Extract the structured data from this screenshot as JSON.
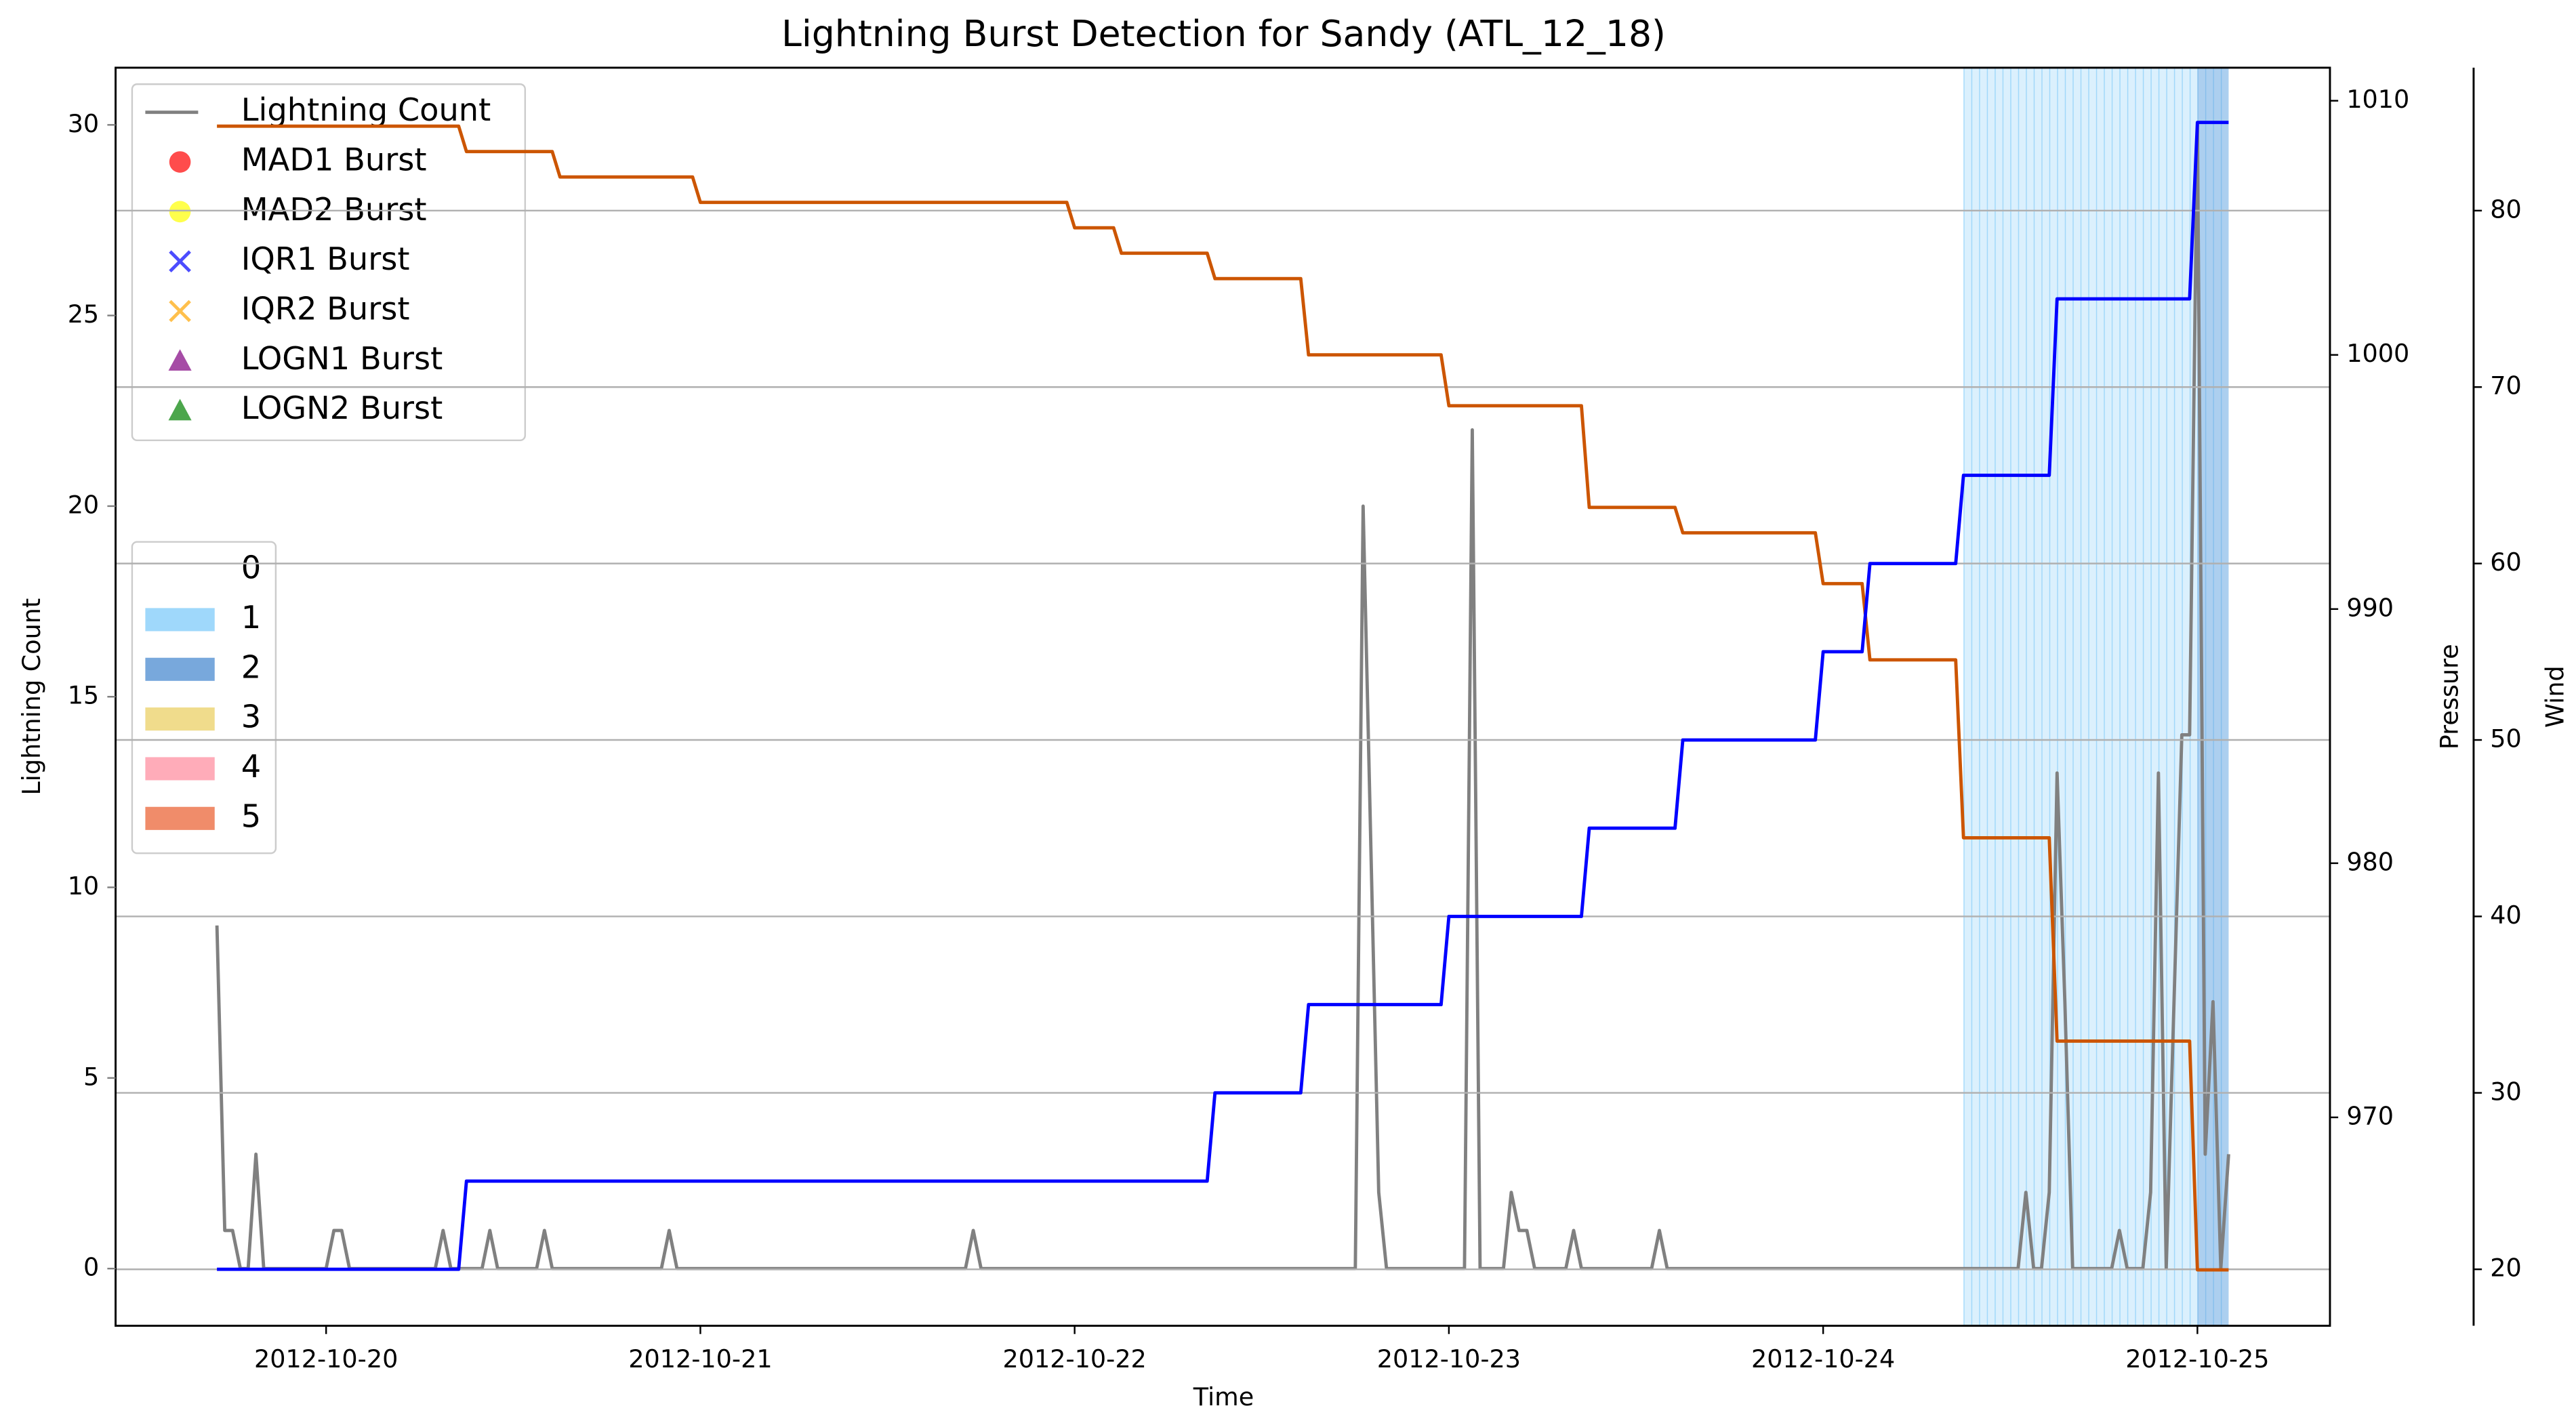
{
  "chart_data": {
    "type": "line",
    "title": "Lightning Burst Detection for Sandy (ATL_12_18)",
    "xlabel": "Time",
    "xlim": [
      "2012-10-19 10:30",
      "2012-10-25 08:30"
    ],
    "xticks": [
      "2012-10-20",
      "2012-10-21",
      "2012-10-22",
      "2012-10-23",
      "2012-10-24",
      "2012-10-25"
    ],
    "ylabel": "Lightning Count",
    "ycolor": "#808080",
    "ylim": [
      -1.5,
      31.5
    ],
    "yticks": [
      0,
      5,
      10,
      15,
      20,
      25,
      30
    ],
    "y2label": "Pressure",
    "y2color": "#cc5500",
    "y2lim": [
      961.8,
      1011.3
    ],
    "y2ticks": [
      970,
      980,
      990,
      1000,
      1010
    ],
    "y3label": "Wind",
    "y3color": "#00008b",
    "y3lim": [
      16.8,
      88.1
    ],
    "y3ticks": [
      20,
      30,
      40,
      50,
      60,
      70,
      80
    ],
    "grid": "y3",
    "legend_loc": "upper left",
    "series": [
      {
        "name": "Lightning Count",
        "color": "#808080",
        "axis": "y",
        "x": [
          "2012-10-19 17:00",
          "2012-10-19 17:30",
          "2012-10-19 18:00",
          "2012-10-19 18:30",
          "2012-10-19 19:00",
          "2012-10-19 19:30",
          "2012-10-19 20:00",
          "2012-10-20 00:00",
          "2012-10-20 00:30",
          "2012-10-20 01:00",
          "2012-10-20 01:30",
          "2012-10-20 07:00",
          "2012-10-20 07:30",
          "2012-10-20 08:00",
          "2012-10-20 10:00",
          "2012-10-20 10:30",
          "2012-10-20 11:00",
          "2012-10-20 13:30",
          "2012-10-20 14:00",
          "2012-10-20 14:30",
          "2012-10-20 21:30",
          "2012-10-20 22:00",
          "2012-10-20 22:30",
          "2012-10-21 17:00",
          "2012-10-21 17:30",
          "2012-10-21 18:00",
          "2012-10-22 18:00",
          "2012-10-22 18:30",
          "2012-10-22 19:30",
          "2012-10-22 20:00",
          "2012-10-23 01:00",
          "2012-10-23 01:30",
          "2012-10-23 02:00",
          "2012-10-23 03:30",
          "2012-10-23 04:00",
          "2012-10-23 04:30",
          "2012-10-23 05:00",
          "2012-10-23 05:30",
          "2012-10-23 07:30",
          "2012-10-23 08:00",
          "2012-10-23 08:30",
          "2012-10-23 13:00",
          "2012-10-23 13:30",
          "2012-10-23 14:00",
          "2012-10-24 12:30",
          "2012-10-24 13:00",
          "2012-10-24 13:30",
          "2012-10-24 14:00",
          "2012-10-24 14:30",
          "2012-10-24 15:00",
          "2012-10-24 15:30",
          "2012-10-24 16:00",
          "2012-10-24 18:30",
          "2012-10-24 19:00",
          "2012-10-24 19:30",
          "2012-10-24 20:30",
          "2012-10-24 21:00",
          "2012-10-24 21:30",
          "2012-10-24 22:00",
          "2012-10-24 23:00",
          "2012-10-24 23:30",
          "2012-10-25 00:00",
          "2012-10-25 00:30",
          "2012-10-25 01:00",
          "2012-10-25 01:30",
          "2012-10-25 02:00"
        ],
        "values": [
          9,
          1,
          1,
          0,
          0,
          3,
          0,
          0,
          1,
          1,
          0,
          0,
          1,
          0,
          0,
          1,
          0,
          0,
          1,
          0,
          0,
          1,
          0,
          0,
          1,
          0,
          0,
          20,
          2,
          0,
          0,
          22,
          0,
          0,
          2,
          1,
          1,
          0,
          0,
          1,
          0,
          0,
          1,
          0,
          0,
          2,
          0,
          0,
          2,
          13,
          7,
          0,
          0,
          1,
          0,
          0,
          2,
          13,
          0,
          14,
          14,
          30,
          3,
          7,
          0,
          3
        ]
      },
      {
        "name": "Pressure",
        "color": "#cc5500",
        "axis": "y2",
        "x": [
          "2012-10-19 17:00",
          "2012-10-20 08:30",
          "2012-10-20 09:00",
          "2012-10-20 14:30",
          "2012-10-20 15:00",
          "2012-10-20 23:30",
          "2012-10-21 00:00",
          "2012-10-21 23:30",
          "2012-10-22 00:00",
          "2012-10-22 02:30",
          "2012-10-22 03:00",
          "2012-10-22 08:30",
          "2012-10-22 09:00",
          "2012-10-22 14:30",
          "2012-10-22 15:00",
          "2012-10-22 23:30",
          "2012-10-23 00:00",
          "2012-10-23 08:30",
          "2012-10-23 09:00",
          "2012-10-23 14:30",
          "2012-10-23 15:00",
          "2012-10-23 23:30",
          "2012-10-24 00:00",
          "2012-10-24 02:30",
          "2012-10-24 03:00",
          "2012-10-24 08:30",
          "2012-10-24 09:00",
          "2012-10-24 14:30",
          "2012-10-24 15:00",
          "2012-10-24 23:30",
          "2012-10-25 00:00",
          "2012-10-25 02:00"
        ],
        "values": [
          1009,
          1009,
          1008,
          1008,
          1007,
          1007,
          1006,
          1006,
          1005,
          1005,
          1004,
          1004,
          1003,
          1003,
          1000,
          1000,
          998,
          998,
          994,
          994,
          993,
          993,
          991,
          991,
          988,
          988,
          981,
          981,
          973,
          973,
          964,
          964
        ]
      },
      {
        "name": "Wind",
        "color": "#0000ff",
        "axis": "y3",
        "x": [
          "2012-10-19 17:00",
          "2012-10-20 08:30",
          "2012-10-20 09:00",
          "2012-10-22 08:30",
          "2012-10-22 09:00",
          "2012-10-22 14:30",
          "2012-10-22 15:00",
          "2012-10-22 23:30",
          "2012-10-23 00:00",
          "2012-10-23 08:30",
          "2012-10-23 09:00",
          "2012-10-23 14:30",
          "2012-10-23 15:00",
          "2012-10-23 23:30",
          "2012-10-24 00:00",
          "2012-10-24 02:30",
          "2012-10-24 03:00",
          "2012-10-24 08:30",
          "2012-10-24 09:00",
          "2012-10-24 14:30",
          "2012-10-24 15:00",
          "2012-10-24 23:30",
          "2012-10-25 00:00",
          "2012-10-25 02:00"
        ],
        "values": [
          20,
          20,
          25,
          25,
          30,
          30,
          35,
          35,
          40,
          40,
          45,
          45,
          50,
          50,
          55,
          55,
          60,
          60,
          65,
          65,
          75,
          75,
          85,
          85
        ]
      }
    ],
    "burst_series": [
      {
        "name": "MAD1 Burst",
        "color": "#ff0000",
        "marker": "circle"
      },
      {
        "name": "MAD2 Burst",
        "color": "#ffff00",
        "marker": "circle"
      },
      {
        "name": "IQR1 Burst",
        "color": "#0000ff",
        "marker": "x"
      },
      {
        "name": "IQR2 Burst",
        "color": "#ffa500",
        "marker": "x"
      },
      {
        "name": "LOGN1 Burst",
        "color": "#800080",
        "marker": "triangle"
      },
      {
        "name": "LOGN2 Burst",
        "color": "#008000",
        "marker": "triangle"
      }
    ],
    "category_legend_loc": "center left",
    "category_legend": [
      {
        "category": 0,
        "color": "#ffffff"
      },
      {
        "category": 1,
        "color": "#87cefa"
      },
      {
        "category": 2,
        "color": "#5692d3"
      },
      {
        "category": 3,
        "color": "#ecd36f"
      },
      {
        "category": 4,
        "color": "#ff97a8"
      },
      {
        "category": 5,
        "color": "#ec6f45"
      }
    ],
    "spans": [
      {
        "category": 1,
        "start": "2012-10-24 09:00",
        "end": "2012-10-25 02:00"
      },
      {
        "category": 2,
        "start": "2012-10-25 00:00",
        "end": "2012-10-25 02:00"
      }
    ]
  }
}
